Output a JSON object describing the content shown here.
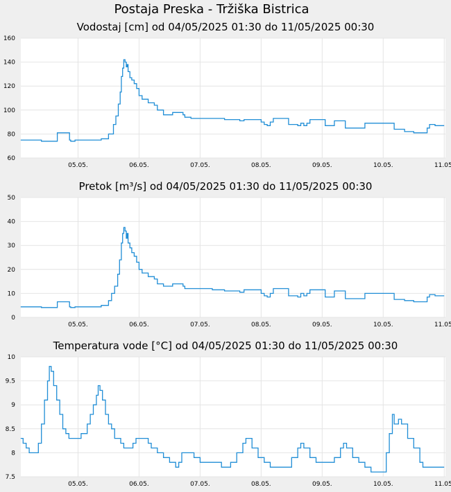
{
  "page": {
    "title": "Postaja Preska - Tržiška Bistrica"
  },
  "colors": {
    "background": "#efefef",
    "plot_bg": "#ffffff",
    "grid": "#e4e4e4",
    "line": "#1f8dd6"
  },
  "chart_data": [
    {
      "type": "line",
      "title": "Vodostaj [cm] od 04/05/2025 01:30 do 11/05/2025 00:30",
      "xlabel": "",
      "ylabel": "",
      "x_tick_labels": [
        "05.05.",
        "06.05.",
        "07.05.",
        "08.05.",
        "09.05.",
        "10.05.",
        "11.05."
      ],
      "y_tick_labels": [
        "60",
        "80",
        "100",
        "120",
        "140",
        "160"
      ],
      "xlim_days": [
        4.0625,
        11.02
      ],
      "ylim": [
        60,
        160
      ],
      "grid": true,
      "series": [
        {
          "values": [
            [
              4.06,
              75
            ],
            [
              4.35,
              75
            ],
            [
              4.4,
              74
            ],
            [
              4.62,
              74
            ],
            [
              4.66,
              81
            ],
            [
              4.82,
              81
            ],
            [
              4.86,
              75
            ],
            [
              4.88,
              74
            ],
            [
              4.95,
              75
            ],
            [
              5.3,
              75
            ],
            [
              5.38,
              76
            ],
            [
              5.5,
              80
            ],
            [
              5.58,
              88
            ],
            [
              5.62,
              95
            ],
            [
              5.66,
              105
            ],
            [
              5.69,
              115
            ],
            [
              5.71,
              128
            ],
            [
              5.73,
              135
            ],
            [
              5.75,
              142
            ],
            [
              5.77,
              140
            ],
            [
              5.79,
              136
            ],
            [
              5.805,
              138
            ],
            [
              5.82,
              132
            ],
            [
              5.85,
              127
            ],
            [
              5.88,
              125
            ],
            [
              5.92,
              122
            ],
            [
              5.96,
              118
            ],
            [
              6.0,
              112
            ],
            [
              6.05,
              109
            ],
            [
              6.15,
              106
            ],
            [
              6.25,
              104
            ],
            [
              6.3,
              100
            ],
            [
              6.4,
              96
            ],
            [
              6.5,
              96
            ],
            [
              6.55,
              98
            ],
            [
              6.72,
              96
            ],
            [
              6.75,
              94
            ],
            [
              6.8,
              94
            ],
            [
              6.85,
              93
            ],
            [
              7.2,
              93
            ],
            [
              7.4,
              92
            ],
            [
              7.65,
              91
            ],
            [
              7.72,
              92
            ],
            [
              7.95,
              92
            ],
            [
              8.0,
              90
            ],
            [
              8.05,
              88
            ],
            [
              8.1,
              87
            ],
            [
              8.15,
              90
            ],
            [
              8.2,
              93
            ],
            [
              8.4,
              93
            ],
            [
              8.45,
              88
            ],
            [
              8.55,
              88
            ],
            [
              8.6,
              87
            ],
            [
              8.65,
              89
            ],
            [
              8.7,
              87
            ],
            [
              8.75,
              89
            ],
            [
              8.8,
              92
            ],
            [
              8.95,
              92
            ],
            [
              9.05,
              87
            ],
            [
              9.15,
              87
            ],
            [
              9.2,
              91
            ],
            [
              9.35,
              91
            ],
            [
              9.38,
              85
            ],
            [
              9.65,
              85
            ],
            [
              9.7,
              89
            ],
            [
              10.0,
              89
            ],
            [
              10.1,
              89
            ],
            [
              10.18,
              84
            ],
            [
              10.3,
              84
            ],
            [
              10.35,
              82
            ],
            [
              10.5,
              81
            ],
            [
              10.65,
              81
            ],
            [
              10.72,
              85
            ],
            [
              10.76,
              88
            ],
            [
              10.85,
              87
            ],
            [
              11.0,
              87
            ]
          ]
        }
      ]
    },
    {
      "type": "line",
      "title": "Pretok [m³/s] od 04/05/2025 01:30 do 11/05/2025 00:30",
      "xlabel": "",
      "ylabel": "",
      "x_tick_labels": [
        "05.05.",
        "06.05.",
        "07.05.",
        "08.05.",
        "09.05.",
        "10.05.",
        "11.05."
      ],
      "y_tick_labels": [
        "0",
        "10",
        "20",
        "30",
        "40",
        "50"
      ],
      "xlim_days": [
        4.0625,
        11.02
      ],
      "ylim": [
        0,
        50
      ],
      "grid": true,
      "series": [
        {
          "values": [
            [
              4.06,
              4.4
            ],
            [
              4.35,
              4.4
            ],
            [
              4.4,
              4.1
            ],
            [
              4.62,
              4.1
            ],
            [
              4.66,
              6.5
            ],
            [
              4.82,
              6.5
            ],
            [
              4.86,
              4.4
            ],
            [
              4.88,
              4.1
            ],
            [
              4.95,
              4.4
            ],
            [
              5.3,
              4.4
            ],
            [
              5.38,
              5.0
            ],
            [
              5.5,
              7.0
            ],
            [
              5.55,
              10
            ],
            [
              5.6,
              13
            ],
            [
              5.65,
              18
            ],
            [
              5.68,
              24
            ],
            [
              5.71,
              31
            ],
            [
              5.73,
              35
            ],
            [
              5.75,
              37.5
            ],
            [
              5.77,
              36
            ],
            [
              5.79,
              33
            ],
            [
              5.805,
              35
            ],
            [
              5.82,
              31
            ],
            [
              5.85,
              29
            ],
            [
              5.88,
              27
            ],
            [
              5.92,
              25.5
            ],
            [
              5.96,
              23
            ],
            [
              6.0,
              20
            ],
            [
              6.05,
              18.5
            ],
            [
              6.15,
              17
            ],
            [
              6.25,
              16
            ],
            [
              6.3,
              14
            ],
            [
              6.4,
              13
            ],
            [
              6.5,
              13
            ],
            [
              6.55,
              14
            ],
            [
              6.72,
              13
            ],
            [
              6.75,
              12
            ],
            [
              6.85,
              12
            ],
            [
              7.2,
              11.5
            ],
            [
              7.4,
              11
            ],
            [
              7.65,
              10.5
            ],
            [
              7.72,
              11.5
            ],
            [
              7.95,
              11.5
            ],
            [
              8.0,
              10
            ],
            [
              8.05,
              9
            ],
            [
              8.1,
              8.5
            ],
            [
              8.15,
              10
            ],
            [
              8.2,
              12
            ],
            [
              8.4,
              12
            ],
            [
              8.45,
              9
            ],
            [
              8.55,
              9
            ],
            [
              8.6,
              8.5
            ],
            [
              8.65,
              10
            ],
            [
              8.7,
              9
            ],
            [
              8.75,
              10
            ],
            [
              8.8,
              11.5
            ],
            [
              8.95,
              11.5
            ],
            [
              9.05,
              8.5
            ],
            [
              9.15,
              8.5
            ],
            [
              9.2,
              11
            ],
            [
              9.35,
              11
            ],
            [
              9.38,
              7.8
            ],
            [
              9.65,
              7.8
            ],
            [
              9.7,
              10
            ],
            [
              10.1,
              10
            ],
            [
              10.18,
              7.5
            ],
            [
              10.3,
              7.5
            ],
            [
              10.35,
              7
            ],
            [
              10.5,
              6.5
            ],
            [
              10.65,
              6.5
            ],
            [
              10.72,
              8.5
            ],
            [
              10.76,
              9.5
            ],
            [
              10.85,
              9
            ],
            [
              11.0,
              9
            ]
          ]
        }
      ]
    },
    {
      "type": "line",
      "title": "Temperatura vode [°C] od 04/05/2025 01:30 do 11/05/2025 00:30",
      "xlabel": "",
      "ylabel": "",
      "x_tick_labels": [
        "05.05.",
        "06.05.",
        "07.05.",
        "08.05.",
        "09.05.",
        "10.05.",
        "11.05."
      ],
      "y_tick_labels": [
        "7.5",
        "8",
        "8.5",
        "9",
        "9.5",
        "10"
      ],
      "xlim_days": [
        4.0625,
        11.02
      ],
      "ylim": [
        7.5,
        10
      ],
      "grid": true,
      "series": [
        {
          "values": [
            [
              4.06,
              8.3
            ],
            [
              4.1,
              8.2
            ],
            [
              4.15,
              8.1
            ],
            [
              4.2,
              8.0
            ],
            [
              4.3,
              8.0
            ],
            [
              4.35,
              8.2
            ],
            [
              4.4,
              8.6
            ],
            [
              4.45,
              9.1
            ],
            [
              4.5,
              9.5
            ],
            [
              4.53,
              9.8
            ],
            [
              4.56,
              9.7
            ],
            [
              4.6,
              9.4
            ],
            [
              4.65,
              9.1
            ],
            [
              4.7,
              8.8
            ],
            [
              4.75,
              8.5
            ],
            [
              4.8,
              8.4
            ],
            [
              4.85,
              8.3
            ],
            [
              5.0,
              8.3
            ],
            [
              5.05,
              8.4
            ],
            [
              5.1,
              8.4
            ],
            [
              5.15,
              8.6
            ],
            [
              5.2,
              8.8
            ],
            [
              5.25,
              9.0
            ],
            [
              5.3,
              9.2
            ],
            [
              5.33,
              9.4
            ],
            [
              5.36,
              9.3
            ],
            [
              5.4,
              9.1
            ],
            [
              5.45,
              8.8
            ],
            [
              5.5,
              8.6
            ],
            [
              5.55,
              8.5
            ],
            [
              5.6,
              8.3
            ],
            [
              5.7,
              8.2
            ],
            [
              5.75,
              8.1
            ],
            [
              5.85,
              8.1
            ],
            [
              5.9,
              8.2
            ],
            [
              5.95,
              8.3
            ],
            [
              6.1,
              8.3
            ],
            [
              6.15,
              8.2
            ],
            [
              6.2,
              8.1
            ],
            [
              6.3,
              8.0
            ],
            [
              6.4,
              7.9
            ],
            [
              6.5,
              7.8
            ],
            [
              6.55,
              7.8
            ],
            [
              6.6,
              7.7
            ],
            [
              6.65,
              7.8
            ],
            [
              6.7,
              8.0
            ],
            [
              6.85,
              8.0
            ],
            [
              6.9,
              7.9
            ],
            [
              7.0,
              7.8
            ],
            [
              7.3,
              7.8
            ],
            [
              7.35,
              7.7
            ],
            [
              7.45,
              7.7
            ],
            [
              7.5,
              7.8
            ],
            [
              7.6,
              8.0
            ],
            [
              7.7,
              8.2
            ],
            [
              7.75,
              8.3
            ],
            [
              7.8,
              8.3
            ],
            [
              7.85,
              8.1
            ],
            [
              7.95,
              7.9
            ],
            [
              8.05,
              7.8
            ],
            [
              8.15,
              7.7
            ],
            [
              8.3,
              7.7
            ],
            [
              8.4,
              7.7
            ],
            [
              8.5,
              7.9
            ],
            [
              8.6,
              8.1
            ],
            [
              8.65,
              8.2
            ],
            [
              8.7,
              8.1
            ],
            [
              8.8,
              7.9
            ],
            [
              8.9,
              7.8
            ],
            [
              9.1,
              7.8
            ],
            [
              9.2,
              7.9
            ],
            [
              9.3,
              8.1
            ],
            [
              9.35,
              8.2
            ],
            [
              9.4,
              8.1
            ],
            [
              9.5,
              7.9
            ],
            [
              9.6,
              7.8
            ],
            [
              9.7,
              7.7
            ],
            [
              9.8,
              7.6
            ],
            [
              9.95,
              7.6
            ],
            [
              10.05,
              8.0
            ],
            [
              10.1,
              8.4
            ],
            [
              10.15,
              8.8
            ],
            [
              10.18,
              8.6
            ],
            [
              10.25,
              8.7
            ],
            [
              10.3,
              8.6
            ],
            [
              10.4,
              8.3
            ],
            [
              10.5,
              8.1
            ],
            [
              10.6,
              7.8
            ],
            [
              10.65,
              7.7
            ],
            [
              11.0,
              7.7
            ]
          ]
        }
      ]
    }
  ]
}
